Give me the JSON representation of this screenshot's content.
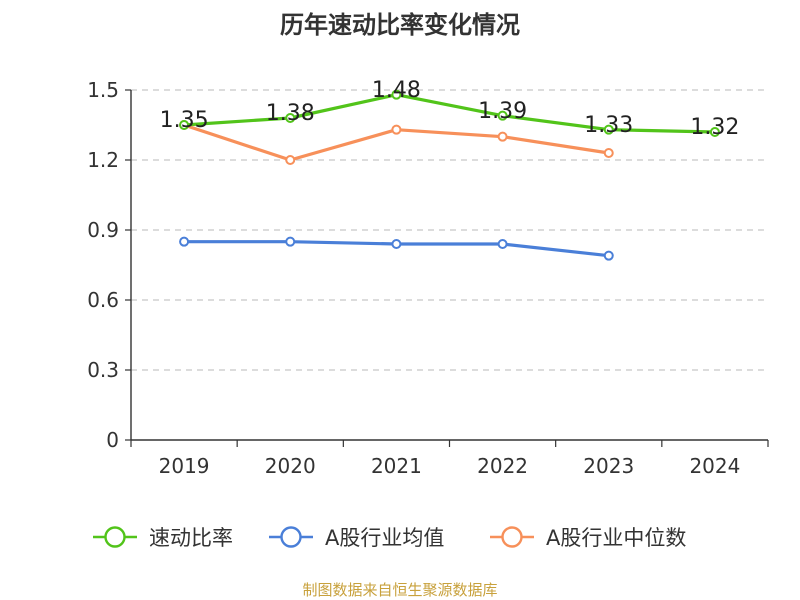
{
  "chart_data": {
    "type": "line",
    "title": "历年速动比率变化情况",
    "categories": [
      "2019",
      "2020",
      "2021",
      "2022",
      "2023",
      "2024"
    ],
    "ylim": [
      0,
      1.5
    ],
    "yticks": [
      "0",
      "0.3",
      "0.6",
      "0.9",
      "1.2",
      "1.5"
    ],
    "grid": true,
    "legend_position": "bottom",
    "series": [
      {
        "name": "速动比率",
        "color": "#52c41a",
        "values": [
          1.35,
          1.38,
          1.48,
          1.39,
          1.33,
          1.32
        ],
        "labels": [
          "1.35",
          "1.38",
          "1.48",
          "1.39",
          "1.33",
          "1.32"
        ]
      },
      {
        "name": "A股行业均值",
        "color": "#4a7fd8",
        "values": [
          0.85,
          0.85,
          0.84,
          0.84,
          0.79,
          null
        ]
      },
      {
        "name": "A股行业中位数",
        "color": "#f7905a",
        "values": [
          1.35,
          1.2,
          1.33,
          1.3,
          1.23,
          null
        ]
      }
    ],
    "source": "制图数据来自恒生聚源数据库"
  }
}
